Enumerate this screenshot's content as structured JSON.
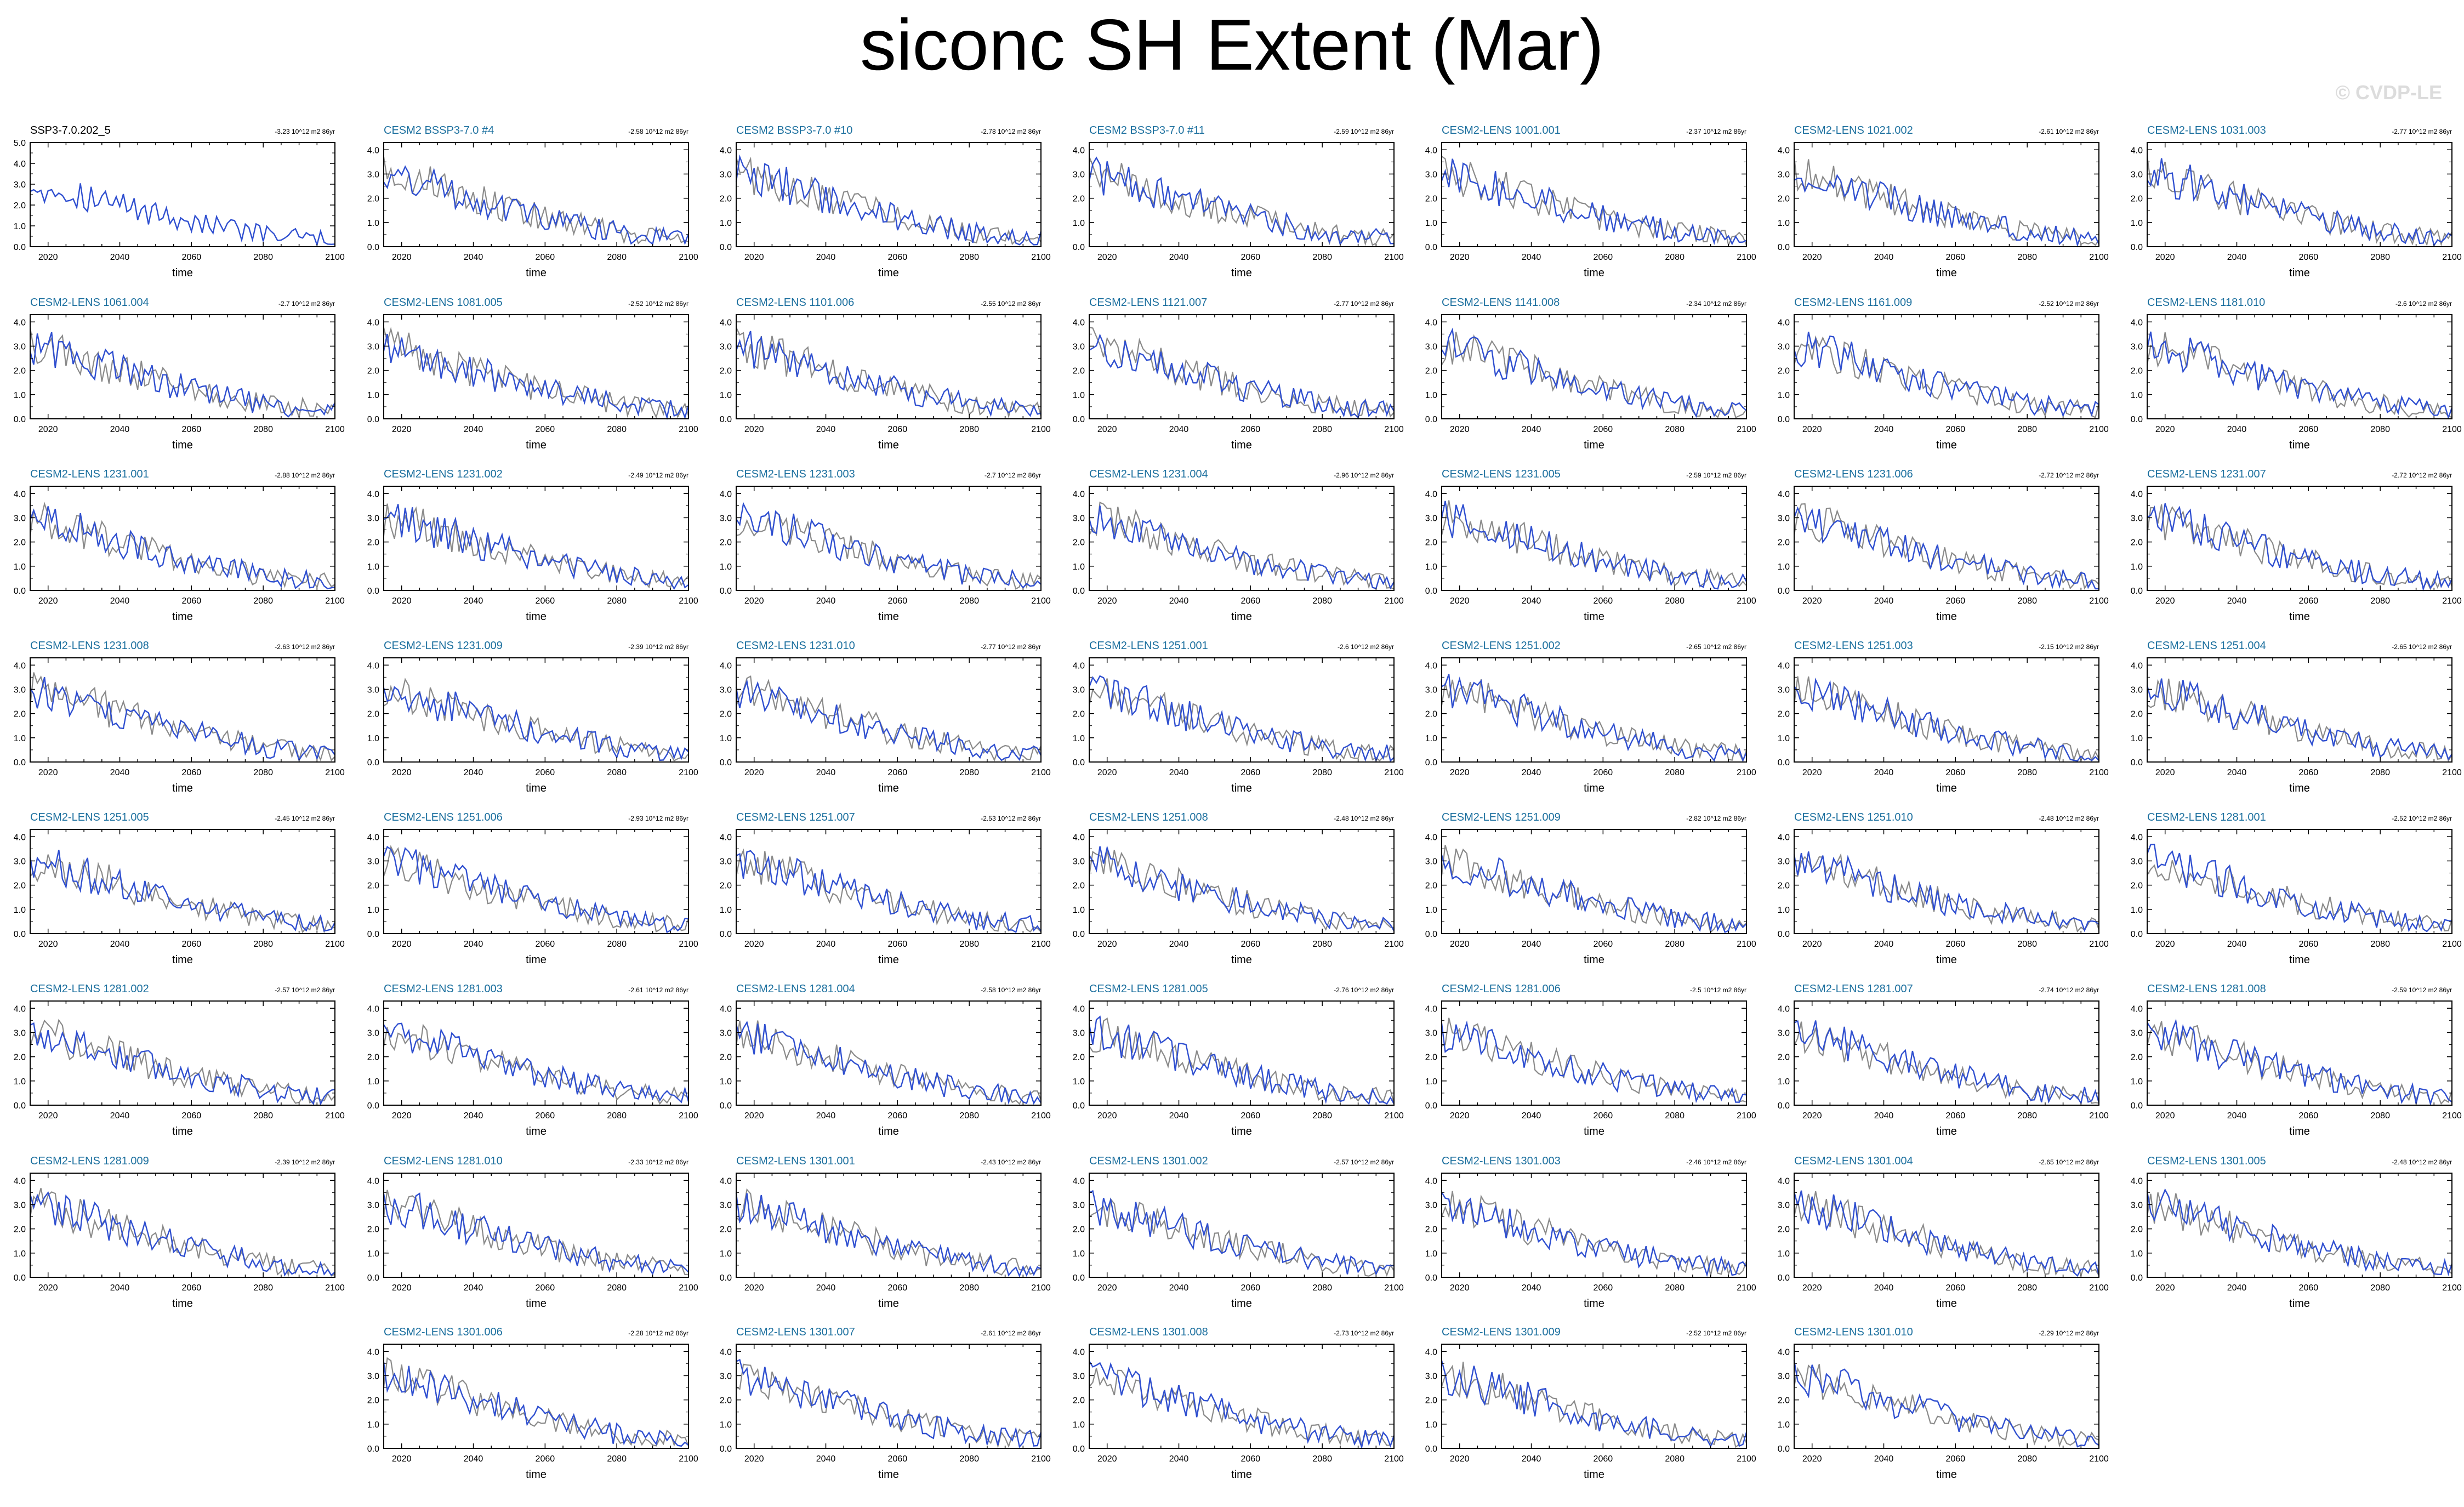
{
  "title": "siconc SH Extent (Mar)",
  "watermark": "© CVDP-LE",
  "colors": {
    "member_line": "#2f4fd0",
    "obs_line": "#8a8a8a",
    "model_title": "#1b6f9e",
    "obs_title": "#000000",
    "zero_line": "#9a9a9a"
  },
  "chart_data": {
    "type": "line",
    "layout": "small-multiples",
    "xlabel": "time",
    "x_ticks": [
      2020,
      2040,
      2060,
      2080,
      2100
    ],
    "xlim": [
      2015,
      2100
    ],
    "y_ticks_obs": [
      "0.0",
      "1.0",
      "2.0",
      "3.0",
      "4.0",
      "5.0"
    ],
    "ylim_obs": [
      0,
      5
    ],
    "y_ticks": [
      "0.0",
      "1.0",
      "2.0",
      "3.0",
      "4.0"
    ],
    "ylim": [
      0,
      4.3
    ],
    "series_note": "blue = individual member; gray = reference member",
    "approx_trend": [
      {
        "year": 2015,
        "value": 3.0
      },
      {
        "year": 2025,
        "value": 2.7
      },
      {
        "year": 2040,
        "value": 2.0
      },
      {
        "year": 2060,
        "value": 1.2
      },
      {
        "year": 2080,
        "value": 0.6
      },
      {
        "year": 2100,
        "value": 0.3
      }
    ],
    "panels": [
      {
        "title": "SSP3-7.0.202_5",
        "trend": "-3.23 10^12 m2 86yr",
        "obs": true
      },
      {
        "title": "CESM2 BSSP3-7.0 #4",
        "trend": "-2.58 10^12 m2 86yr"
      },
      {
        "title": "CESM2 BSSP3-7.0 #10",
        "trend": "-2.78 10^12 m2 86yr"
      },
      {
        "title": "CESM2 BSSP3-7.0 #11",
        "trend": "-2.59 10^12 m2 86yr"
      },
      {
        "title": "CESM2-LENS 1001.001",
        "trend": "-2.37 10^12 m2 86yr"
      },
      {
        "title": "CESM2-LENS 1021.002",
        "trend": "-2.61 10^12 m2 86yr"
      },
      {
        "title": "CESM2-LENS 1031.003",
        "trend": "-2.77 10^12 m2 86yr"
      },
      {
        "title": "CESM2-LENS 1061.004",
        "trend": "-2.7 10^12 m2 86yr"
      },
      {
        "title": "CESM2-LENS 1081.005",
        "trend": "-2.52 10^12 m2 86yr"
      },
      {
        "title": "CESM2-LENS 1101.006",
        "trend": "-2.55 10^12 m2 86yr"
      },
      {
        "title": "CESM2-LENS 1121.007",
        "trend": "-2.77 10^12 m2 86yr"
      },
      {
        "title": "CESM2-LENS 1141.008",
        "trend": "-2.34 10^12 m2 86yr"
      },
      {
        "title": "CESM2-LENS 1161.009",
        "trend": "-2.52 10^12 m2 86yr"
      },
      {
        "title": "CESM2-LENS 1181.010",
        "trend": "-2.6 10^12 m2 86yr"
      },
      {
        "title": "CESM2-LENS 1231.001",
        "trend": "-2.88 10^12 m2 86yr"
      },
      {
        "title": "CESM2-LENS 1231.002",
        "trend": "-2.49 10^12 m2 86yr"
      },
      {
        "title": "CESM2-LENS 1231.003",
        "trend": "-2.7 10^12 m2 86yr"
      },
      {
        "title": "CESM2-LENS 1231.004",
        "trend": "-2.96 10^12 m2 86yr"
      },
      {
        "title": "CESM2-LENS 1231.005",
        "trend": "-2.59 10^12 m2 86yr"
      },
      {
        "title": "CESM2-LENS 1231.006",
        "trend": "-2.72 10^12 m2 86yr"
      },
      {
        "title": "CESM2-LENS 1231.007",
        "trend": "-2.72 10^12 m2 86yr"
      },
      {
        "title": "CESM2-LENS 1231.008",
        "trend": "-2.63 10^12 m2 86yr"
      },
      {
        "title": "CESM2-LENS 1231.009",
        "trend": "-2.39 10^12 m2 86yr"
      },
      {
        "title": "CESM2-LENS 1231.010",
        "trend": "-2.77 10^12 m2 86yr"
      },
      {
        "title": "CESM2-LENS 1251.001",
        "trend": "-2.6 10^12 m2 86yr"
      },
      {
        "title": "CESM2-LENS 1251.002",
        "trend": "-2.65 10^12 m2 86yr"
      },
      {
        "title": "CESM2-LENS 1251.003",
        "trend": "-2.15 10^12 m2 86yr"
      },
      {
        "title": "CESM2-LENS 1251.004",
        "trend": "-2.65 10^12 m2 86yr"
      },
      {
        "title": "CESM2-LENS 1251.005",
        "trend": "-2.45 10^12 m2 86yr"
      },
      {
        "title": "CESM2-LENS 1251.006",
        "trend": "-2.93 10^12 m2 86yr"
      },
      {
        "title": "CESM2-LENS 1251.007",
        "trend": "-2.53 10^12 m2 86yr"
      },
      {
        "title": "CESM2-LENS 1251.008",
        "trend": "-2.48 10^12 m2 86yr"
      },
      {
        "title": "CESM2-LENS 1251.009",
        "trend": "-2.82 10^12 m2 86yr"
      },
      {
        "title": "CESM2-LENS 1251.010",
        "trend": "-2.48 10^12 m2 86yr"
      },
      {
        "title": "CESM2-LENS 1281.001",
        "trend": "-2.52 10^12 m2 86yr"
      },
      {
        "title": "CESM2-LENS 1281.002",
        "trend": "-2.57 10^12 m2 86yr"
      },
      {
        "title": "CESM2-LENS 1281.003",
        "trend": "-2.61 10^12 m2 86yr"
      },
      {
        "title": "CESM2-LENS 1281.004",
        "trend": "-2.58 10^12 m2 86yr"
      },
      {
        "title": "CESM2-LENS 1281.005",
        "trend": "-2.76 10^12 m2 86yr"
      },
      {
        "title": "CESM2-LENS 1281.006",
        "trend": "-2.5 10^12 m2 86yr"
      },
      {
        "title": "CESM2-LENS 1281.007",
        "trend": "-2.74 10^12 m2 86yr"
      },
      {
        "title": "CESM2-LENS 1281.008",
        "trend": "-2.59 10^12 m2 86yr"
      },
      {
        "title": "CESM2-LENS 1281.009",
        "trend": "-2.39 10^12 m2 86yr"
      },
      {
        "title": "CESM2-LENS 1281.010",
        "trend": "-2.33 10^12 m2 86yr"
      },
      {
        "title": "CESM2-LENS 1301.001",
        "trend": "-2.43 10^12 m2 86yr"
      },
      {
        "title": "CESM2-LENS 1301.002",
        "trend": "-2.57 10^12 m2 86yr"
      },
      {
        "title": "CESM2-LENS 1301.003",
        "trend": "-2.46 10^12 m2 86yr"
      },
      {
        "title": "CESM2-LENS 1301.004",
        "trend": "-2.65 10^12 m2 86yr"
      },
      {
        "title": "CESM2-LENS 1301.005",
        "trend": "-2.48 10^12 m2 86yr"
      },
      {
        "title": "CESM2-LENS 1301.006",
        "trend": "-2.28 10^12 m2 86yr"
      },
      {
        "title": "CESM2-LENS 1301.007",
        "trend": "-2.61 10^12 m2 86yr"
      },
      {
        "title": "CESM2-LENS 1301.008",
        "trend": "-2.73 10^12 m2 86yr"
      },
      {
        "title": "CESM2-LENS 1301.009",
        "trend": "-2.52 10^12 m2 86yr"
      },
      {
        "title": "CESM2-LENS 1301.010",
        "trend": "-2.29 10^12 m2 86yr"
      }
    ]
  }
}
